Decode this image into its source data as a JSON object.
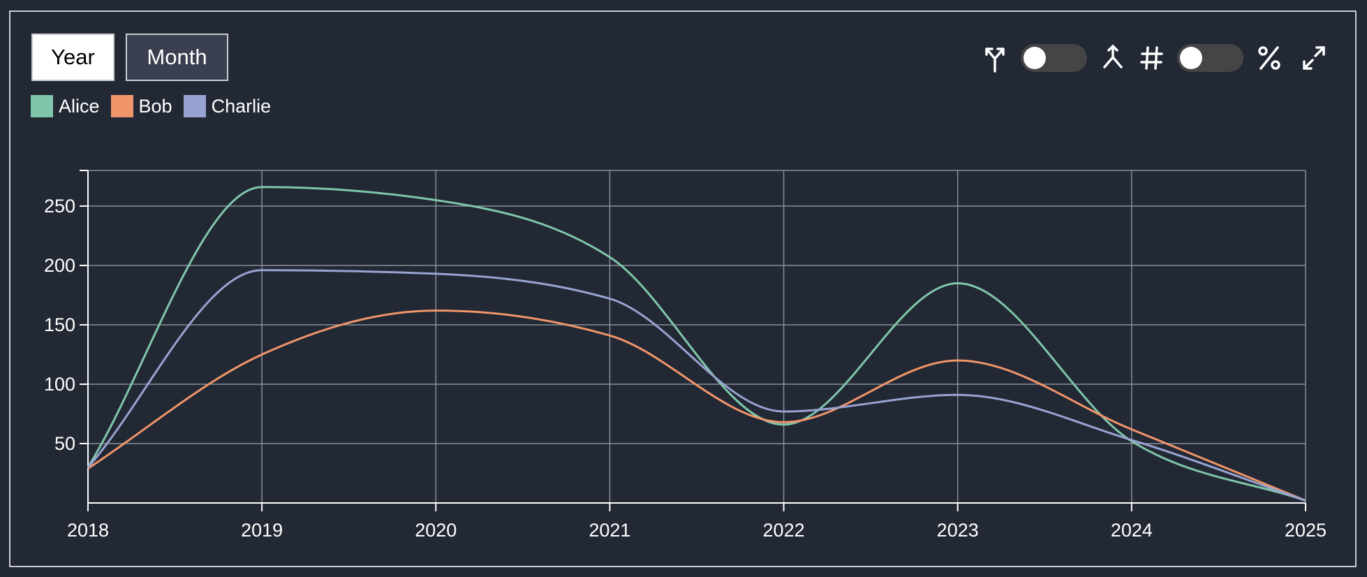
{
  "controls": {
    "year_label": "Year",
    "month_label": "Month",
    "icons": [
      "split-icon",
      "toggle-icon",
      "merge-icon",
      "hash-icon",
      "toggle-icon",
      "percent-icon",
      "expand-icon"
    ]
  },
  "colors": {
    "Alice": "#7fc6aa",
    "Bob": "#f0956a",
    "Charlie": "#99a3d1"
  },
  "chart_data": {
    "type": "line",
    "x": [
      "2018",
      "2019",
      "2020",
      "2021",
      "2022",
      "2023",
      "2024",
      "2025"
    ],
    "series": [
      {
        "name": "Alice",
        "values": [
          30,
          266,
          255,
          207,
          66,
          185,
          52,
          2
        ]
      },
      {
        "name": "Bob",
        "values": [
          29,
          125,
          162,
          141,
          68,
          120,
          62,
          2
        ]
      },
      {
        "name": "Charlie",
        "values": [
          30,
          196,
          193,
          172,
          77,
          91,
          53,
          2
        ]
      }
    ],
    "yticks": [
      50,
      100,
      150,
      200,
      250
    ],
    "ylim": [
      0,
      280
    ],
    "grid": true,
    "legend": "top-left"
  }
}
